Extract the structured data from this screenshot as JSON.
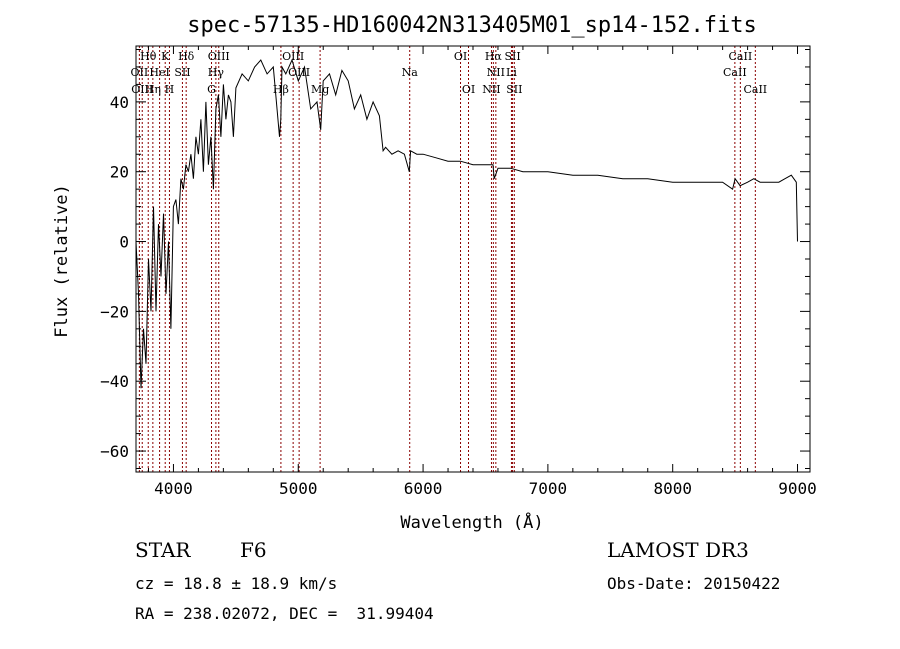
{
  "chart_data": {
    "type": "line",
    "title": "spec-57135-HD160042N313405M01_sp14-152.fits",
    "xlabel": "Wavelength (Å)",
    "ylabel": "Flux (relative)",
    "xlim": [
      3700,
      9100
    ],
    "ylim": [
      -66,
      56
    ],
    "x_ticks": [
      4000,
      5000,
      6000,
      7000,
      8000,
      9000
    ],
    "y_ticks": [
      -60,
      -40,
      -20,
      0,
      20,
      40
    ],
    "x_tick_labels": [
      "4000",
      "5000",
      "6000",
      "7000",
      "8000",
      "9000"
    ],
    "y_tick_labels": [
      "−60",
      "−40",
      "−20",
      "0",
      "20",
      "40"
    ],
    "series": [
      {
        "name": "flux",
        "x": [
          3700,
          3720,
          3740,
          3760,
          3780,
          3800,
          3820,
          3840,
          3860,
          3880,
          3900,
          3920,
          3940,
          3960,
          3980,
          4000,
          4020,
          4040,
          4060,
          4080,
          4100,
          4120,
          4140,
          4160,
          4180,
          4200,
          4220,
          4240,
          4260,
          4280,
          4300,
          4320,
          4340,
          4360,
          4380,
          4400,
          4420,
          4440,
          4460,
          4480,
          4500,
          4550,
          4600,
          4650,
          4700,
          4750,
          4800,
          4850,
          4860,
          4870,
          4900,
          4950,
          5000,
          5050,
          5100,
          5150,
          5180,
          5200,
          5250,
          5300,
          5350,
          5400,
          5450,
          5500,
          5550,
          5600,
          5650,
          5680,
          5700,
          5750,
          5800,
          5850,
          5890,
          5900,
          5950,
          6000,
          6100,
          6200,
          6300,
          6400,
          6500,
          6560,
          6570,
          6600,
          6700,
          6800,
          6900,
          7000,
          7200,
          7400,
          7600,
          7800,
          8000,
          8200,
          8400,
          8480,
          8500,
          8540,
          8600,
          8650,
          8700,
          8800,
          8850,
          8900,
          8950,
          8990,
          9000
        ],
        "y": [
          0,
          -15,
          -42,
          -25,
          -35,
          -5,
          -20,
          10,
          -20,
          5,
          -10,
          8,
          -15,
          0,
          -25,
          10,
          12,
          5,
          18,
          15,
          22,
          20,
          25,
          18,
          30,
          25,
          35,
          20,
          40,
          22,
          30,
          15,
          38,
          42,
          30,
          45,
          35,
          42,
          40,
          30,
          44,
          48,
          46,
          50,
          52,
          48,
          50,
          30,
          35,
          50,
          48,
          52,
          46,
          50,
          38,
          40,
          32,
          46,
          48,
          42,
          49,
          46,
          38,
          42,
          35,
          40,
          36,
          26,
          27,
          25,
          26,
          25,
          20,
          26,
          25,
          25,
          24,
          23,
          23,
          22,
          22,
          22,
          18,
          21,
          21,
          20,
          20,
          20,
          19,
          19,
          18,
          18,
          17,
          17,
          17,
          15,
          18,
          16,
          17,
          18,
          17,
          17,
          17,
          18,
          19,
          17,
          0
        ]
      }
    ],
    "emission_lines": [
      {
        "label": "Hθ",
        "x": 3798,
        "row": 0
      },
      {
        "label": "K",
        "x": 3934,
        "row": 0
      },
      {
        "label": "Hδ",
        "x": 4102,
        "row": 0
      },
      {
        "label": "OIII",
        "x": 4363,
        "row": 0
      },
      {
        "label": "OIII",
        "x": 4959,
        "row": 0
      },
      {
        "label": "OI",
        "x": 6300,
        "row": 0
      },
      {
        "label": "Hα",
        "x": 6563,
        "row": 0
      },
      {
        "label": "SII",
        "x": 6717,
        "row": 0
      },
      {
        "label": "CaII",
        "x": 8542,
        "row": 0
      },
      {
        "label": "OII",
        "x": 3727,
        "row": 1
      },
      {
        "label": "HeI",
        "x": 3889,
        "row": 1
      },
      {
        "label": "SII",
        "x": 4072,
        "row": 1
      },
      {
        "label": "Hγ",
        "x": 4340,
        "row": 1
      },
      {
        "label": "OIII",
        "x": 5007,
        "row": 1
      },
      {
        "label": "Na",
        "x": 5893,
        "row": 1
      },
      {
        "label": "NII",
        "x": 6583,
        "row": 1
      },
      {
        "label": "Li",
        "x": 6708,
        "row": 1
      },
      {
        "label": "CaII",
        "x": 8498,
        "row": 1
      },
      {
        "label": "OIII",
        "x": 3750,
        "row": 2
      },
      {
        "label": "Hη",
        "x": 3835,
        "row": 2
      },
      {
        "label": "H",
        "x": 3968,
        "row": 2
      },
      {
        "label": "G",
        "x": 4305,
        "row": 2
      },
      {
        "label": "Hβ",
        "x": 4861,
        "row": 2
      },
      {
        "label": "Mg",
        "x": 5175,
        "row": 2
      },
      {
        "label": "OI",
        "x": 6364,
        "row": 2
      },
      {
        "label": "NII",
        "x": 6548,
        "row": 2
      },
      {
        "label": "SII",
        "x": 6731,
        "row": 2
      },
      {
        "label": "CaII",
        "x": 8662,
        "row": 2
      }
    ],
    "line_color": "#8b0000"
  },
  "info": {
    "object_class": "STAR",
    "subclass": "F6",
    "survey": "LAMOST DR3",
    "cz": "cz = 18.8 ± 18.9 km/s",
    "obs_date": "Obs-Date: 20150422",
    "coords": "RA = 238.02072, DEC =  31.99404"
  }
}
